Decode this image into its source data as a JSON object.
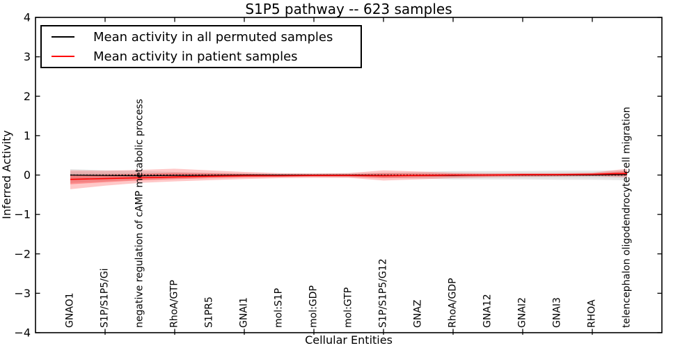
{
  "header": {
    "title": "S1P5 pathway -- 623 samples"
  },
  "axes": {
    "xlabel": "Cellular Entities",
    "ylabel": "Inferred Activity"
  },
  "legend": {
    "position": "upper left",
    "items": [
      {
        "label": "Mean activity in all permuted samples",
        "color": "#000000"
      },
      {
        "label": "Mean activity in patient samples",
        "color": "#ff0000"
      }
    ]
  },
  "chart_data": {
    "type": "line",
    "title": "S1P5 pathway -- 623 samples",
    "xlabel": "Cellular Entities",
    "ylabel": "Inferred Activity",
    "ylim": [
      -4,
      4
    ],
    "yticks": [
      4,
      3,
      2,
      1,
      0,
      -1,
      -2,
      -3,
      -4
    ],
    "grid": false,
    "legend_position": "upper left",
    "zero_reference_line": {
      "value": 0,
      "style": "dotted",
      "color": "#000000"
    },
    "categories": [
      "GNAO1",
      "S1P/S1P5/Gi",
      "negative regulation of cAMP metabolic process",
      "RhoA/GTP",
      "S1PR5",
      "GNAI1",
      "mol:S1P",
      "mol:GDP",
      "mol:GTP",
      "S1P/S1P5/G12",
      "GNAZ",
      "RhoA/GDP",
      "GNA12",
      "GNAI2",
      "GNAI3",
      "RHOA",
      "telencephalon oligodendrocyte cell migration"
    ],
    "series": [
      {
        "name": "Mean activity in all permuted samples",
        "color": "#000000",
        "band_color": "#bdbdbd",
        "values": [
          0.0,
          -0.01,
          -0.02,
          -0.01,
          -0.01,
          0.0,
          0.0,
          0.0,
          0.0,
          -0.01,
          -0.01,
          -0.01,
          0.0,
          0.0,
          0.0,
          0.0,
          0.01
        ],
        "band_upper": [
          0.15,
          0.12,
          0.1,
          0.08,
          0.06,
          0.05,
          0.04,
          0.04,
          0.05,
          0.06,
          0.08,
          0.1,
          0.1,
          0.1,
          0.11,
          0.11,
          0.12
        ],
        "band_lower": [
          -0.2,
          -0.16,
          -0.12,
          -0.1,
          -0.08,
          -0.06,
          -0.05,
          -0.05,
          -0.06,
          -0.07,
          -0.09,
          -0.11,
          -0.11,
          -0.11,
          -0.12,
          -0.12,
          -0.13
        ]
      },
      {
        "name": "Mean activity in patient samples",
        "color": "#ff0000",
        "band_color": "#ff2a2a",
        "values": [
          -0.11,
          -0.09,
          -0.07,
          -0.05,
          -0.03,
          -0.02,
          -0.02,
          -0.01,
          -0.01,
          -0.02,
          -0.01,
          0.0,
          0.0,
          0.01,
          0.01,
          0.02,
          0.04
        ],
        "band_upper": [
          0.12,
          0.11,
          0.13,
          0.16,
          0.12,
          0.08,
          0.05,
          0.04,
          0.05,
          0.12,
          0.09,
          0.06,
          0.05,
          0.05,
          0.05,
          0.06,
          0.16
        ],
        "band_lower": [
          -0.36,
          -0.27,
          -0.2,
          -0.16,
          -0.13,
          -0.1,
          -0.08,
          -0.07,
          -0.07,
          -0.14,
          -0.11,
          -0.08,
          -0.06,
          -0.05,
          -0.04,
          -0.03,
          -0.06
        ]
      }
    ]
  }
}
